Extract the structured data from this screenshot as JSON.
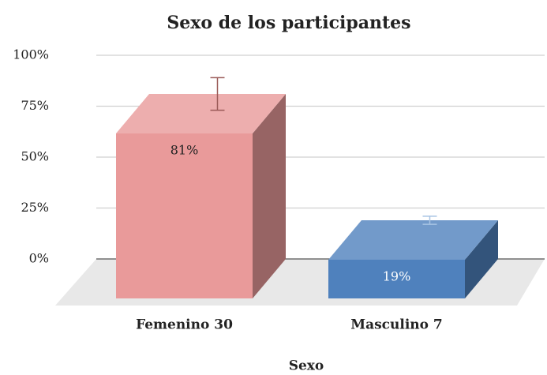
{
  "chart_data": {
    "type": "bar3d",
    "title": "Sexo de los participantes",
    "x_label": "Sexo",
    "categories": [
      "Femenino 30",
      "Masculino 7"
    ],
    "values": [
      81,
      19
    ],
    "value_labels": [
      "81%",
      "19%"
    ],
    "errors": [
      8,
      2
    ],
    "colors": [
      "#e99a9a",
      "#4f81bd"
    ],
    "ylim": [
      0,
      100
    ],
    "yticks": [
      {
        "value": 0,
        "label": "0%"
      },
      {
        "value": 25,
        "label": "25%"
      },
      {
        "value": 50,
        "label": "50%"
      },
      {
        "value": 75,
        "label": "75%"
      },
      {
        "value": 100,
        "label": "100%"
      }
    ],
    "grid": true
  }
}
